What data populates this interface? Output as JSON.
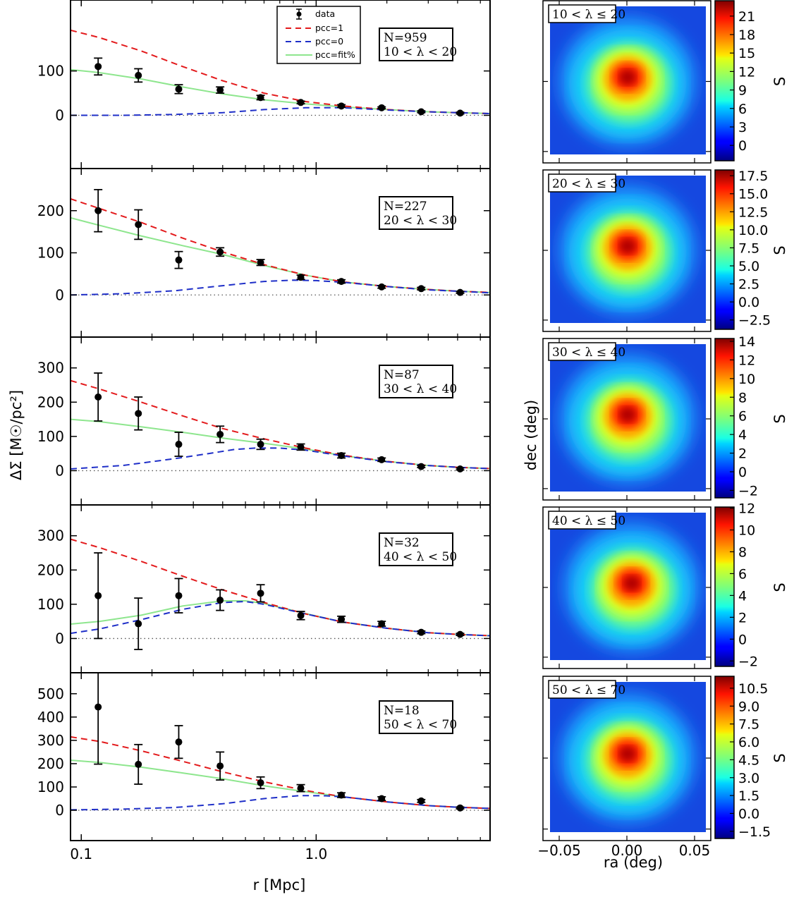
{
  "figure": {
    "xlabel_left": "r [Mpc]",
    "ylabel_left": "ΔΣ [M☉/pc²]",
    "xlabel_right": "ra (deg)",
    "ylabel_right": "dec (deg)",
    "colorbar_label": "S"
  },
  "legend": {
    "placement": "top panel, upper-center",
    "entries": [
      {
        "key": "data",
        "label": "data",
        "color": "#000000"
      },
      {
        "key": "pcc1",
        "label": "pcc=1",
        "color": "#e31a1c"
      },
      {
        "key": "pcc0",
        "label": "pcc=0",
        "color": "#1f2fc8"
      },
      {
        "key": "fit",
        "label": "pcc=fit%",
        "color": "#8ee68e"
      }
    ]
  },
  "colors": {
    "pcc1": "#e31a1c",
    "pcc0": "#1f2fc8",
    "fit": "#8ee68e",
    "data": "#000000"
  },
  "chart_data": [
    {
      "type": "scatter",
      "panel": 1,
      "xscale": "log",
      "xlim": [
        0.09,
        5.5
      ],
      "ylim": [
        -120,
        260
      ],
      "yticks": [
        0,
        100
      ],
      "xticks": [
        0.1,
        1.0
      ],
      "xticklabels": [
        "0.1",
        "1.0"
      ],
      "annotation": [
        "N=959",
        "10 < λ < 20"
      ],
      "x": [
        0.118,
        0.175,
        0.26,
        0.39,
        0.58,
        0.86,
        1.28,
        1.9,
        2.8,
        4.1
      ],
      "y": [
        110,
        90,
        59,
        57,
        40,
        29,
        21,
        17,
        8,
        5
      ],
      "yerr": [
        19,
        15,
        10,
        7,
        5,
        3,
        3,
        2,
        2,
        2
      ],
      "series": [
        {
          "name": "pcc=1",
          "x": [
            0.09,
            0.12,
            0.18,
            0.27,
            0.4,
            0.6,
            0.9,
            1.3,
            2,
            3,
            4,
            5.5
          ],
          "values": [
            192,
            175,
            145,
            110,
            78,
            50,
            31,
            21,
            13,
            8,
            6,
            4
          ]
        },
        {
          "name": "pcc=0",
          "x": [
            0.09,
            0.15,
            0.25,
            0.4,
            0.6,
            0.9,
            1.3,
            2,
            3,
            4,
            5.5
          ],
          "values": [
            0,
            0,
            2,
            6,
            13,
            17,
            17,
            12,
            8,
            6,
            4
          ]
        },
        {
          "name": "pcc=fit%",
          "x": [
            0.09,
            0.12,
            0.18,
            0.27,
            0.4,
            0.6,
            0.9,
            1.3,
            2,
            3,
            4,
            5.5
          ],
          "values": [
            103,
            96,
            82,
            64,
            48,
            35,
            26,
            19,
            13,
            8,
            6,
            4
          ]
        }
      ],
      "heatmap": {
        "type": "heatmap",
        "label": "10 < λ ≤ 20",
        "ticks": [
          "21",
          "18",
          "15",
          "12",
          "9",
          "6",
          "3",
          "0"
        ],
        "vmin": -2.5,
        "vmax": 23.5
      }
    },
    {
      "type": "scatter",
      "panel": 2,
      "xscale": "log",
      "xlim": [
        0.09,
        5.5
      ],
      "ylim": [
        -100,
        300
      ],
      "yticks": [
        0,
        100,
        200
      ],
      "xticks": [
        0.1,
        1.0
      ],
      "xticklabels": [
        "",
        ""
      ],
      "annotation": [
        "N=227",
        "20 < λ < 30"
      ],
      "x": [
        0.118,
        0.175,
        0.26,
        0.39,
        0.58,
        0.86,
        1.28,
        1.9,
        2.8,
        4.1
      ],
      "y": [
        200,
        167,
        83,
        102,
        77,
        42,
        32,
        19,
        15,
        6
      ],
      "yerr": [
        50,
        35,
        20,
        10,
        7,
        5,
        4,
        3,
        3,
        2
      ],
      "series": [
        {
          "name": "pcc=1",
          "x": [
            0.09,
            0.12,
            0.18,
            0.27,
            0.4,
            0.6,
            0.9,
            1.3,
            2,
            3,
            4,
            5.5
          ],
          "values": [
            228,
            205,
            172,
            135,
            102,
            72,
            47,
            31,
            20,
            13,
            9,
            6
          ]
        },
        {
          "name": "pcc=0",
          "x": [
            0.09,
            0.15,
            0.25,
            0.4,
            0.6,
            0.8,
            1.0,
            1.3,
            2,
            3,
            4,
            5.5
          ],
          "values": [
            0,
            3,
            10,
            22,
            32,
            35,
            34,
            30,
            20,
            12,
            9,
            5
          ]
        },
        {
          "name": "pcc=fit%",
          "x": [
            0.09,
            0.12,
            0.18,
            0.27,
            0.4,
            0.6,
            0.9,
            1.3,
            2,
            3,
            4,
            5.5
          ],
          "values": [
            183,
            165,
            140,
            117,
            96,
            70,
            47,
            31,
            20,
            13,
            9,
            6
          ]
        }
      ],
      "heatmap": {
        "type": "heatmap",
        "label": "20 < λ ≤ 30",
        "ticks": [
          "17.5",
          "15.0",
          "12.5",
          "10.0",
          "7.5",
          "5.0",
          "2.5",
          "0.0",
          "−2.5"
        ],
        "vmin": -3.8,
        "vmax": 18.3
      }
    },
    {
      "type": "scatter",
      "panel": 3,
      "xscale": "log",
      "xlim": [
        0.09,
        5.5
      ],
      "ylim": [
        -100,
        390
      ],
      "yticks": [
        0,
        100,
        200,
        300
      ],
      "xticks": [
        0.1,
        1.0
      ],
      "xticklabels": [
        "",
        ""
      ],
      "annotation": [
        "N=87",
        "30 < λ < 40"
      ],
      "x": [
        0.118,
        0.175,
        0.26,
        0.39,
        0.58,
        0.86,
        1.28,
        1.9,
        2.8,
        4.1
      ],
      "y": [
        215,
        167,
        77,
        106,
        77,
        69,
        44,
        32,
        12,
        5
      ],
      "yerr": [
        70,
        48,
        35,
        24,
        15,
        9,
        7,
        5,
        3,
        3
      ],
      "series": [
        {
          "name": "pcc=1",
          "x": [
            0.09,
            0.12,
            0.18,
            0.27,
            0.4,
            0.6,
            0.9,
            1.3,
            2,
            3,
            4,
            5.5
          ],
          "values": [
            263,
            238,
            200,
            160,
            123,
            93,
            66,
            45,
            27,
            15,
            10,
            6
          ]
        },
        {
          "name": "pcc=0",
          "x": [
            0.09,
            0.15,
            0.25,
            0.35,
            0.45,
            0.55,
            0.7,
            0.9,
            1.3,
            2,
            3,
            4,
            5.5
          ],
          "values": [
            5,
            15,
            35,
            50,
            62,
            66,
            66,
            60,
            43,
            26,
            15,
            10,
            6
          ]
        },
        {
          "name": "pcc=fit%",
          "x": [
            0.09,
            0.12,
            0.18,
            0.27,
            0.4,
            0.6,
            0.9,
            1.3,
            2,
            3,
            4,
            5.5
          ],
          "values": [
            150,
            143,
            128,
            112,
            95,
            80,
            63,
            44,
            27,
            15,
            10,
            6
          ]
        }
      ],
      "heatmap": {
        "type": "heatmap",
        "label": "30 < λ ≤ 40",
        "ticks": [
          "14",
          "12",
          "10",
          "8",
          "6",
          "4",
          "2",
          "0",
          "−2"
        ],
        "vmin": -2.8,
        "vmax": 14.3
      }
    },
    {
      "type": "scatter",
      "panel": 4,
      "xscale": "log",
      "xlim": [
        0.09,
        5.5
      ],
      "ylim": [
        -100,
        390
      ],
      "yticks": [
        0,
        100,
        200,
        300
      ],
      "xticks": [
        0.1,
        1.0
      ],
      "xticklabels": [
        "",
        ""
      ],
      "annotation": [
        "N=32",
        "40 < λ < 50"
      ],
      "x": [
        0.118,
        0.175,
        0.26,
        0.39,
        0.58,
        0.86,
        1.28,
        1.9,
        2.8,
        4.1
      ],
      "y": [
        125,
        43,
        125,
        112,
        132,
        67,
        56,
        43,
        18,
        12
      ],
      "yerr": [
        125,
        75,
        50,
        30,
        25,
        12,
        9,
        7,
        4,
        3
      ],
      "series": [
        {
          "name": "pcc=1",
          "x": [
            0.09,
            0.12,
            0.18,
            0.27,
            0.4,
            0.6,
            0.9,
            1.3,
            2,
            3,
            4,
            5.5
          ],
          "values": [
            290,
            265,
            225,
            182,
            142,
            105,
            72,
            48,
            30,
            17,
            12,
            8
          ]
        },
        {
          "name": "pcc=0",
          "x": [
            0.09,
            0.12,
            0.18,
            0.27,
            0.4,
            0.5,
            0.6,
            0.9,
            1.3,
            2,
            3,
            4,
            5.5
          ],
          "values": [
            15,
            28,
            55,
            85,
            105,
            108,
            100,
            72,
            48,
            30,
            17,
            12,
            8
          ]
        },
        {
          "name": "pcc=fit%",
          "x": [
            0.09,
            0.12,
            0.18,
            0.27,
            0.4,
            0.5,
            0.6,
            0.9,
            1.3,
            2,
            3,
            4,
            5.5
          ],
          "values": [
            42,
            50,
            68,
            95,
            110,
            110,
            102,
            73,
            48,
            30,
            17,
            12,
            8
          ]
        }
      ],
      "heatmap": {
        "type": "heatmap",
        "label": "40 < λ ≤ 50",
        "ticks": [
          "12",
          "10",
          "8",
          "6",
          "4",
          "2",
          "0",
          "−2"
        ],
        "vmin": -2.5,
        "vmax": 12.1
      }
    },
    {
      "type": "scatter",
      "panel": 5,
      "xscale": "log",
      "xlim": [
        0.09,
        5.5
      ],
      "ylim": [
        -130,
        590
      ],
      "yticks": [
        0,
        100,
        200,
        300,
        400,
        500
      ],
      "xticks": [
        0.1,
        1.0
      ],
      "xticklabels": [
        "0.1",
        "1.0"
      ],
      "annotation": [
        "N=18",
        "50 < λ < 70"
      ],
      "x": [
        0.118,
        0.175,
        0.26,
        0.39,
        0.58,
        0.86,
        1.28,
        1.9,
        2.8,
        4.1
      ],
      "y": [
        443,
        197,
        293,
        190,
        118,
        95,
        65,
        50,
        40,
        10
      ],
      "yerr": [
        245,
        85,
        70,
        60,
        25,
        15,
        10,
        8,
        6,
        4
      ],
      "series": [
        {
          "name": "pcc=1",
          "x": [
            0.09,
            0.12,
            0.18,
            0.27,
            0.4,
            0.6,
            0.9,
            1.3,
            2,
            3,
            4,
            5.5
          ],
          "values": [
            315,
            295,
            255,
            210,
            165,
            122,
            85,
            58,
            36,
            20,
            13,
            8
          ]
        },
        {
          "name": "pcc=0",
          "x": [
            0.09,
            0.15,
            0.25,
            0.4,
            0.6,
            0.85,
            1.1,
            1.3,
            2,
            3,
            4,
            5.5
          ],
          "values": [
            2,
            5,
            12,
            28,
            50,
            63,
            62,
            58,
            36,
            20,
            13,
            8
          ]
        },
        {
          "name": "pcc=fit%",
          "x": [
            0.09,
            0.12,
            0.18,
            0.27,
            0.4,
            0.6,
            0.9,
            1.3,
            2,
            3,
            4,
            5.5
          ],
          "values": [
            215,
            205,
            185,
            160,
            135,
            105,
            80,
            58,
            36,
            20,
            13,
            8
          ]
        }
      ],
      "heatmap": {
        "type": "heatmap",
        "label": "50 < λ ≤ 70",
        "ticks": [
          "10.5",
          "9.0",
          "7.5",
          "6.0",
          "4.5",
          "3.0",
          "1.5",
          "0.0",
          "−1.5"
        ],
        "vmin": -2.1,
        "vmax": 11.5
      }
    }
  ],
  "heatmap_axes": {
    "xticklabels": [
      "−0.05",
      "0.00",
      "0.05"
    ],
    "xticks": [
      -0.05,
      0.0,
      0.05
    ],
    "xlim": [
      -0.062,
      0.062
    ]
  }
}
